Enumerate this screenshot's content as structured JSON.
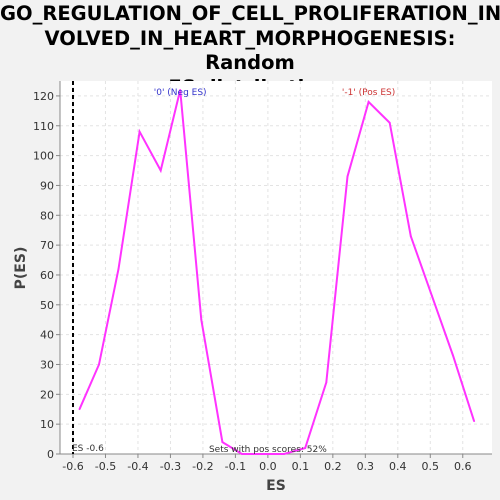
{
  "chart_data": {
    "type": "line",
    "title_line1": "GO_REGULATION_OF_CELL_PROLIFERATION_IN",
    "title_line2": "VOLVED_IN_HEART_MORPHOGENESIS: Random",
    "title_line3": "ES distribution",
    "xlabel": "ES",
    "ylabel": "P(ES)",
    "xlim": [
      -0.64,
      0.69
    ],
    "ylim": [
      0,
      125
    ],
    "x_ticks": [
      -0.6,
      -0.5,
      -0.4,
      -0.3,
      -0.2,
      -0.1,
      0.0,
      0.1,
      0.2,
      0.3,
      0.4,
      0.5,
      0.6
    ],
    "x_tick_labels": [
      "-0.6",
      "-0.5",
      "-0.4",
      "-0.3",
      "-0.2",
      "-0.1",
      "0.0",
      "0.1",
      "0.2",
      "0.3",
      "0.4",
      "0.5",
      "0.6"
    ],
    "y_ticks": [
      0,
      10,
      20,
      30,
      40,
      50,
      60,
      70,
      80,
      90,
      100,
      110,
      120
    ],
    "y_tick_labels": [
      "0",
      "10",
      "20",
      "30",
      "40",
      "50",
      "60",
      "70",
      "80",
      "90",
      "100",
      "110",
      "120"
    ],
    "grid": true,
    "series": [
      {
        "color": "#ff33ff",
        "x": [
          -0.58,
          -0.52,
          -0.46,
          -0.395,
          -0.33,
          -0.27,
          -0.205,
          -0.14,
          -0.08,
          -0.02,
          0.05,
          0.115,
          0.18,
          0.245,
          0.31,
          0.375,
          0.44,
          0.505,
          0.57,
          0.635
        ],
        "y": [
          15,
          30,
          62,
          108,
          95,
          122,
          45,
          4,
          0,
          0,
          0,
          2,
          24,
          93,
          118,
          111,
          73,
          53,
          33,
          11
        ]
      }
    ],
    "marker_line": {
      "x": -0.6,
      "label": "ES -0.6",
      "color": "#000000"
    },
    "annotations": {
      "neg_label": "'0' (Neg ES)",
      "neg_color": "#3333cc",
      "neg_x": -0.27,
      "pos_label": "'-1' (Pos ES)",
      "pos_color": "#cc3333",
      "pos_x": 0.31,
      "pos_scores_text": "Sets with pos scores: 52%"
    }
  }
}
